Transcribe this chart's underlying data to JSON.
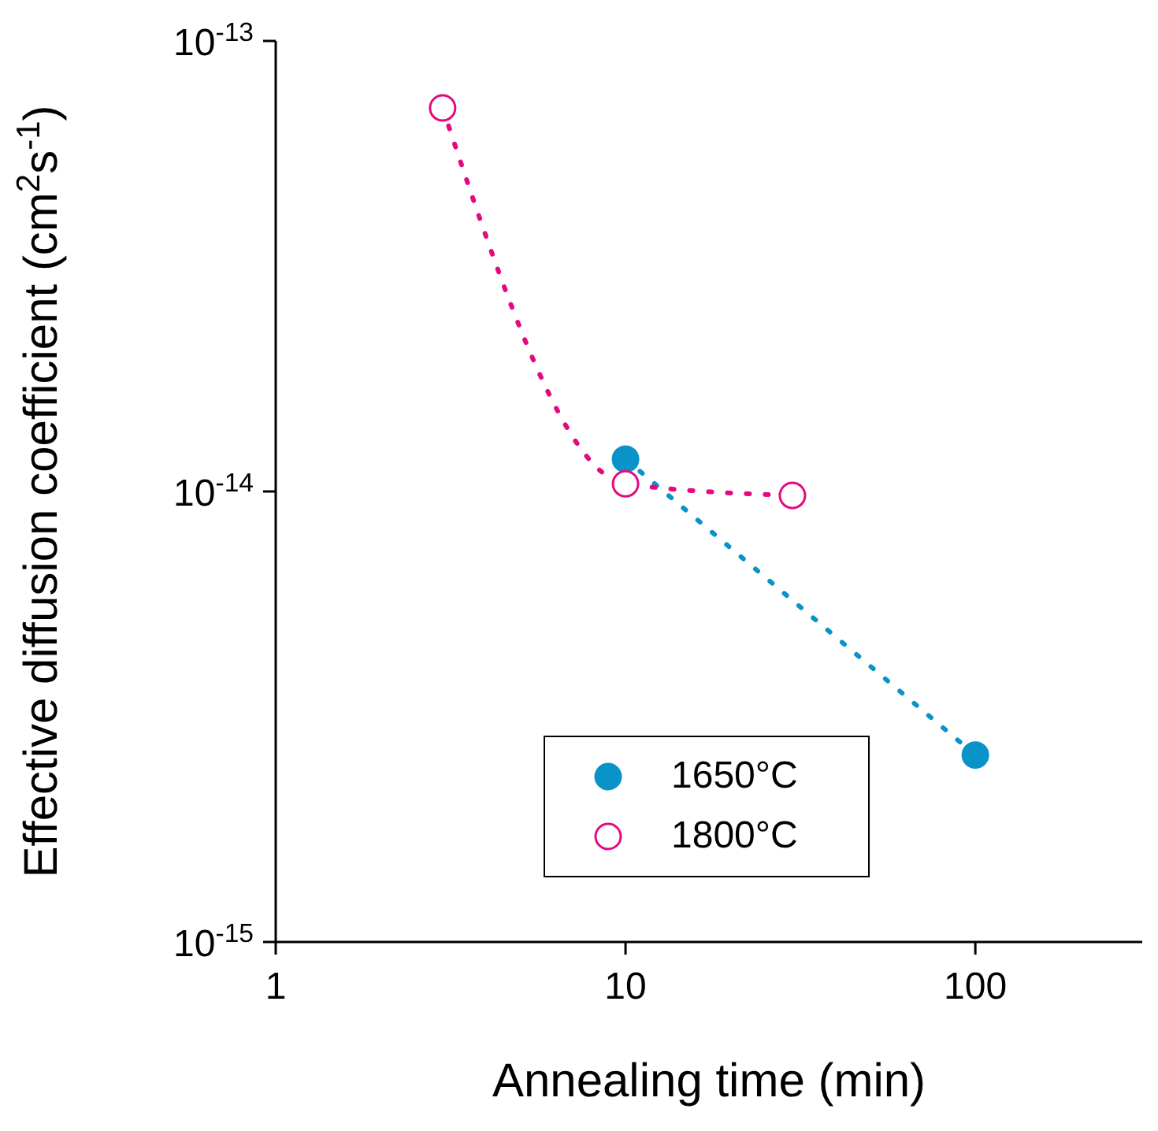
{
  "chart_data": {
    "type": "line",
    "xlabel": "Annealing time (min)",
    "ylabel": "Effective diffusion coefficient (cm$^{2}$s$^{-1}$)",
    "log": "xy",
    "xlim": [
      1,
      300
    ],
    "xticks": [
      1,
      10,
      100
    ],
    "ylim": [
      1e-15,
      1e-13
    ],
    "yticks": [
      {
        "value": 1e-15,
        "label": "10$^{-15}$"
      },
      {
        "value": 1e-14,
        "label": "10$^{-14}$"
      },
      {
        "value": 1e-13,
        "label": "10$^{-13}$"
      }
    ],
    "marker": "circle",
    "line_style": "dotted",
    "legend": "bottom right",
    "grid": false,
    "series": [
      {
        "name": "1650°C",
        "color": "#0a93c9",
        "x": [
          10,
          100
        ],
        "values": [
          1.18e-14,
          2.6e-15
        ]
      },
      {
        "name": "1800°C",
        "color": "#e5097f",
        "x": [
          3,
          10,
          30
        ],
        "values": [
          7.1e-14,
          1.04e-14,
          9.8e-15
        ]
      }
    ]
  }
}
